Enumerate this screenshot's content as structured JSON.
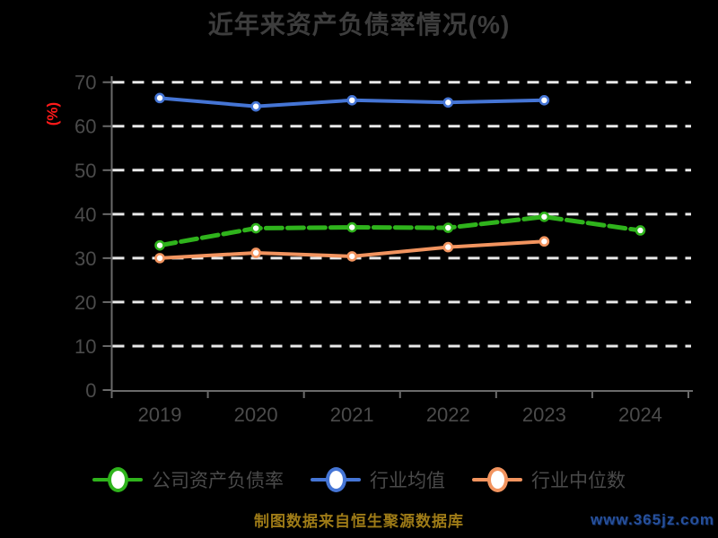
{
  "title": "近年来资产负债率情况(%)",
  "footer": "制图数据来自恒生聚源数据库",
  "watermark": "www.365jz.com",
  "colors": {
    "background": "#000000",
    "grid": "#e9e9e9",
    "axis": "#6a6a6a",
    "tick_label": "#4b4b4b",
    "title": "#3d3d3d",
    "ylabel": "#ff1a1a",
    "legend_label": "#4a4a4a",
    "footer": "#9e7b17",
    "watermark": "#27509b"
  },
  "chart_data": {
    "type": "line",
    "title": "近年来资产负债率情况(%)",
    "ylabel": "(%)",
    "xlabel": "",
    "categories": [
      "2019",
      "2020",
      "2021",
      "2022",
      "2023",
      "2024"
    ],
    "series": [
      {
        "name": "公司资产负债率",
        "color": "#2fb31c",
        "line_style": "dashed",
        "values": [
          32.9,
          36.8,
          37.0,
          36.9,
          39.4,
          36.3
        ]
      },
      {
        "name": "行业均值",
        "color": "#4575d5",
        "line_style": "solid",
        "values": [
          66.4,
          64.5,
          65.9,
          65.4,
          65.9,
          null
        ]
      },
      {
        "name": "行业中位数",
        "color": "#f2945f",
        "line_style": "solid",
        "values": [
          30.0,
          31.2,
          30.4,
          32.5,
          33.8,
          null
        ]
      }
    ],
    "ylim": [
      0,
      70
    ],
    "yticks": [
      0,
      10,
      20,
      30,
      40,
      50,
      60,
      70
    ],
    "grid": "horizontal-dashed",
    "legend_position": "bottom",
    "marker": "circle-white-fill"
  }
}
